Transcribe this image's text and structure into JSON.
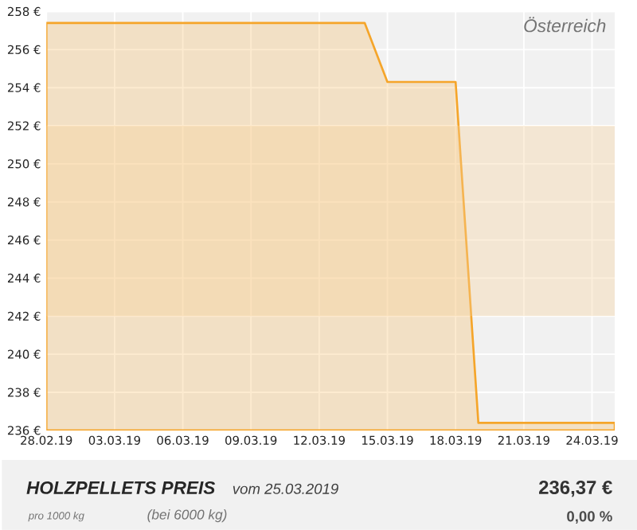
{
  "chart_data": {
    "type": "area",
    "title": "HOLZPELLETS PREIS",
    "subtitle": "vom 25.03.2019",
    "annotations": [
      "Österreich",
      "pro 1000 kg",
      "(bei 6000 kg)",
      "236,37 €",
      "0,00 %"
    ],
    "x": [
      "2019-02-28",
      "2019-03-14",
      "2019-03-15",
      "2019-03-18",
      "2019-03-19",
      "2019-03-25"
    ],
    "series": [
      {
        "color": "#f5a52a",
        "values": [
          257.4,
          257.4,
          254.3,
          254.3,
          236.4,
          236.4
        ]
      }
    ],
    "bands": [
      {
        "axis": "y",
        "from": 242,
        "to": 252,
        "color": "#f7d29a"
      }
    ],
    "xlim": [
      "2019-02-28",
      "2019-03-25"
    ],
    "xticks": [
      {
        "value": "2019-02-28",
        "label": "28.02.19"
      },
      {
        "value": "2019-03-03",
        "label": "03.03.19"
      },
      {
        "value": "2019-03-06",
        "label": "06.03.19"
      },
      {
        "value": "2019-03-09",
        "label": "09.03.19"
      },
      {
        "value": "2019-03-12",
        "label": "12.03.19"
      },
      {
        "value": "2019-03-15",
        "label": "15.03.19"
      },
      {
        "value": "2019-03-18",
        "label": "18.03.19"
      },
      {
        "value": "2019-03-21",
        "label": "21.03.19"
      },
      {
        "value": "2019-03-24",
        "label": "24.03.19"
      }
    ],
    "ylim": [
      236,
      258
    ],
    "yticks": [
      {
        "value": 236,
        "label": "236 €"
      },
      {
        "value": 238,
        "label": "238 €"
      },
      {
        "value": 240,
        "label": "240 €"
      },
      {
        "value": 242,
        "label": "242 €"
      },
      {
        "value": 244,
        "label": "244 €"
      },
      {
        "value": 246,
        "label": "246 €"
      },
      {
        "value": 248,
        "label": "248 €"
      },
      {
        "value": 250,
        "label": "250 €"
      },
      {
        "value": 252,
        "label": "252 €"
      },
      {
        "value": 254,
        "label": "254 €"
      },
      {
        "value": 256,
        "label": "256 €"
      },
      {
        "value": 258,
        "label": "258 €"
      }
    ],
    "grid": true
  }
}
